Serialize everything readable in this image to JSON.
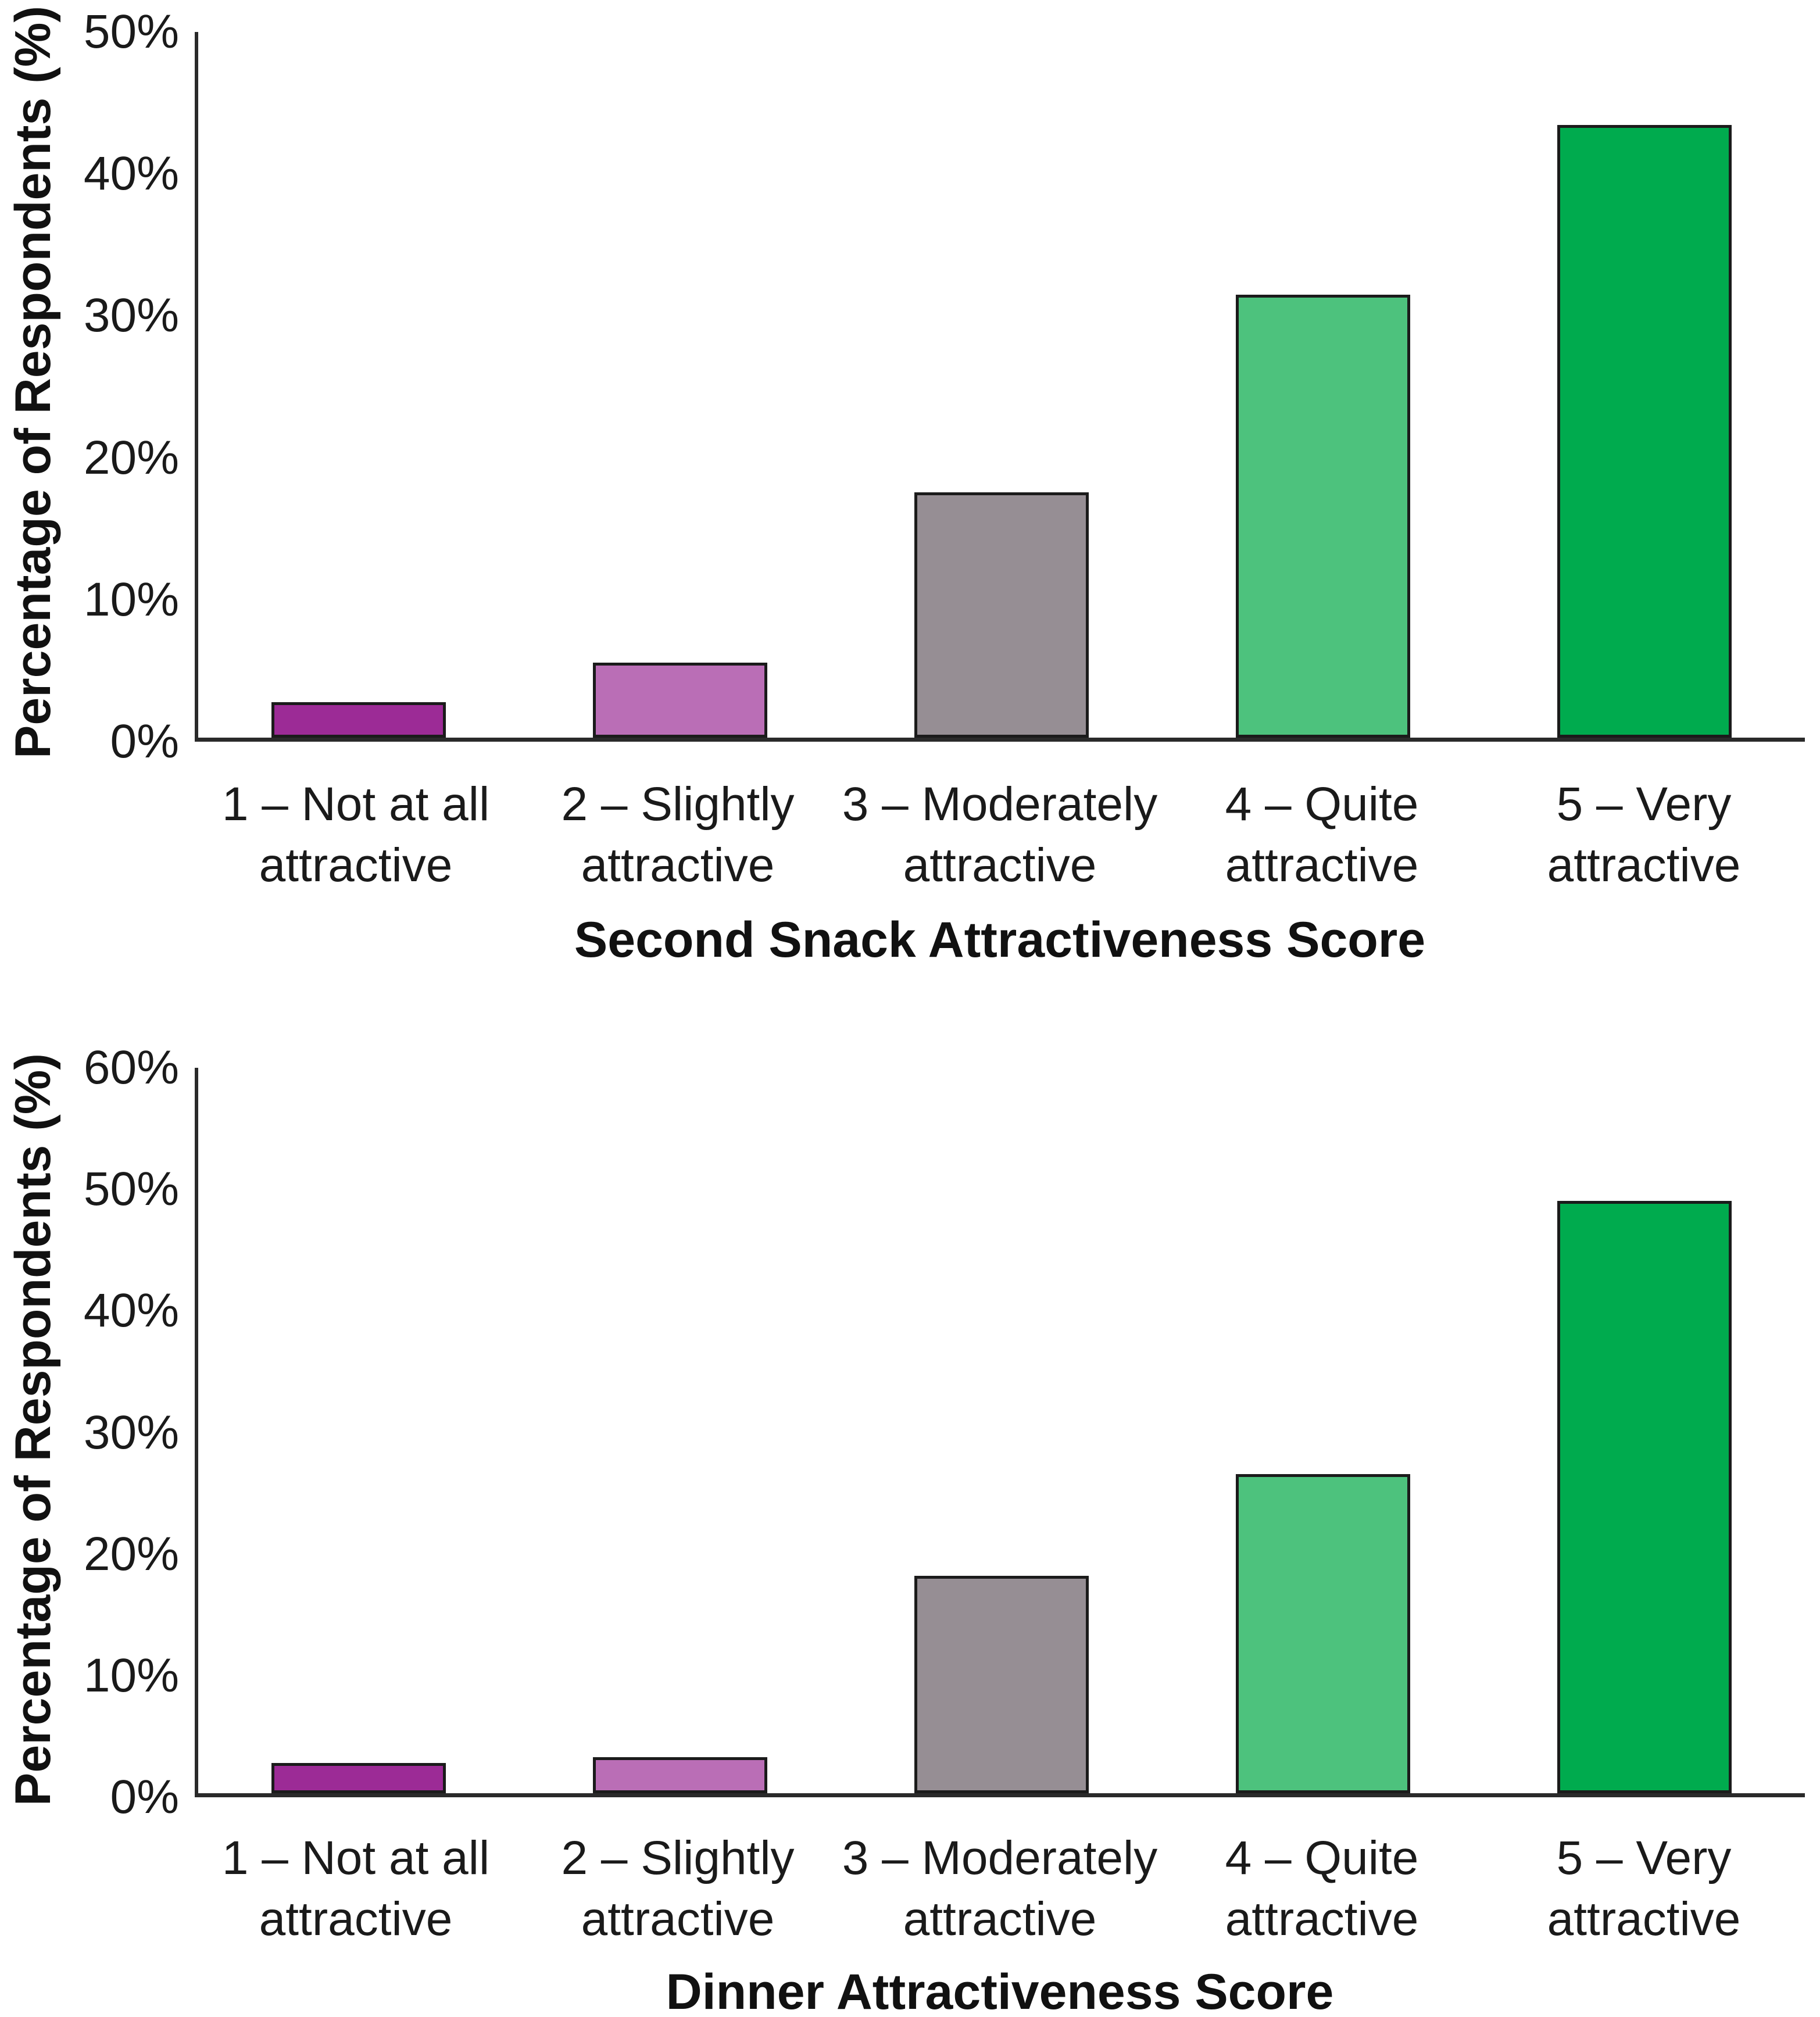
{
  "background_color": "#ffffff",
  "text_color": "#1a1a1a",
  "chart_data": [
    {
      "type": "bar",
      "title": "",
      "xlabel": "Second Snack Attractiveness Score",
      "ylabel": "Percentage of Respondents (%)",
      "categories": [
        "1 – Not at all attractive",
        "2 – Slightly attractive",
        "3 – Moderately attractive",
        "4 – Quite attractive",
        "5 – Very attractive"
      ],
      "category_lines": [
        [
          "1 – Not at all",
          "attractive"
        ],
        [
          "2 – Slightly",
          "attractive"
        ],
        [
          "3 – Moderately",
          "attractive"
        ],
        [
          "4 – Quite",
          "attractive"
        ],
        [
          "5 – Very",
          "attractive"
        ]
      ],
      "values": [
        2.5,
        5.3,
        17.4,
        31.4,
        43.4
      ],
      "unit": "%",
      "ylim": [
        0,
        50
      ],
      "tick_values": [
        0,
        10,
        20,
        30,
        40,
        50
      ],
      "y_ticks": [
        "0%",
        "10%",
        "20%",
        "30%",
        "40%",
        "50%"
      ],
      "bar_colors": [
        "#9C2B96",
        "#BA6EB6",
        "#968E94",
        "#4DC27D",
        "#00AB4E"
      ],
      "grid": false,
      "legend": "none"
    },
    {
      "type": "bar",
      "title": "",
      "xlabel": "Dinner Attractiveness Score",
      "ylabel": "Percentage of Respondents (%)",
      "categories": [
        "1 – Not at all attractive",
        "2 – Slightly attractive",
        "3 – Moderately attractive",
        "4 – Quite attractive",
        "5 – Very attractive"
      ],
      "category_lines": [
        [
          "1 – Not at all",
          "attractive"
        ],
        [
          "2 – Slightly",
          "attractive"
        ],
        [
          "3 – Moderately",
          "attractive"
        ],
        [
          "4 – Quite",
          "attractive"
        ],
        [
          "5 – Very",
          "attractive"
        ]
      ],
      "values": [
        2.5,
        3.0,
        18.0,
        26.4,
        49.0
      ],
      "unit": "%",
      "ylim": [
        0,
        60
      ],
      "tick_values": [
        0,
        10,
        20,
        30,
        40,
        50,
        60
      ],
      "y_ticks": [
        "0%",
        "10%",
        "20%",
        "30%",
        "40%",
        "50%",
        "60%"
      ],
      "bar_colors": [
        "#9C2B96",
        "#BA6EB6",
        "#968E94",
        "#4DC27D",
        "#00AB4E"
      ],
      "grid": false,
      "legend": "none"
    }
  ]
}
